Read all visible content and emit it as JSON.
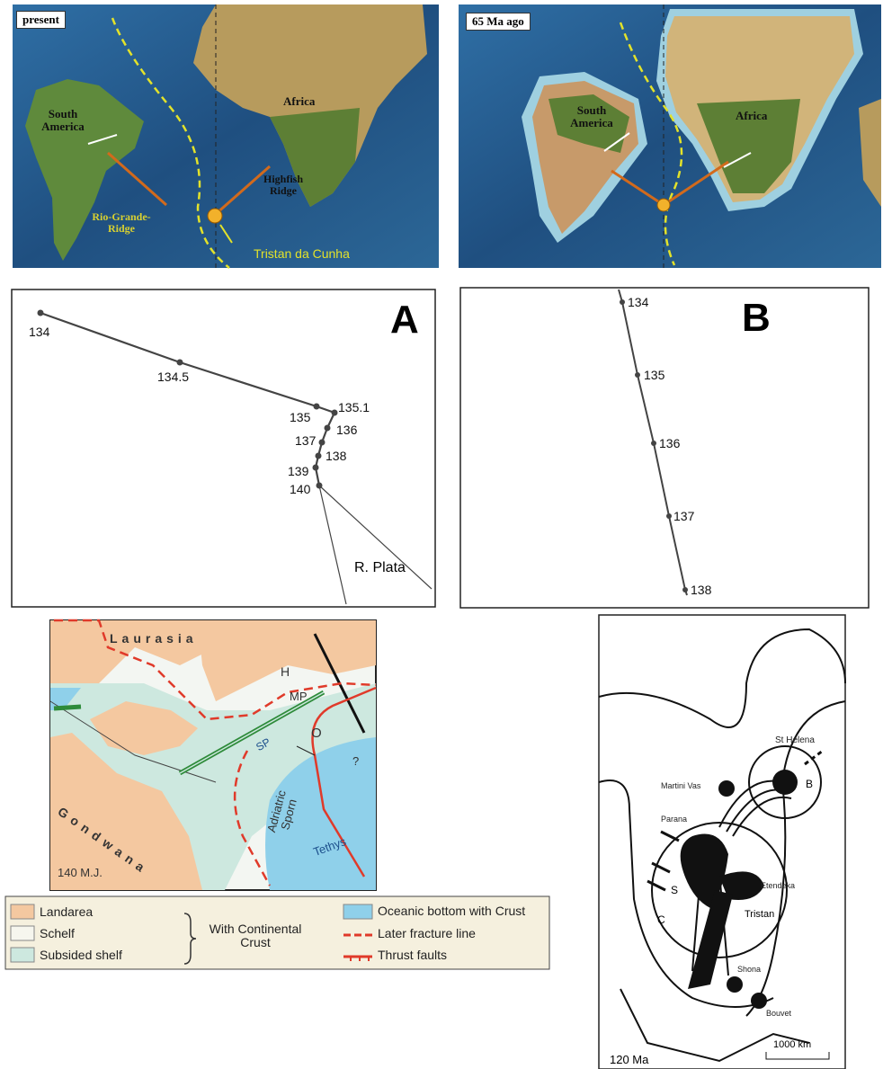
{
  "present_map": {
    "tag": "present",
    "south_america": "South America",
    "africa": "Africa",
    "highfish_ridge": "Highfish Ridge",
    "rio_grande_ridge": "Rio-Grande-Ridge",
    "tristan_da_cunha": "Tristan da Cunha"
  },
  "past_map": {
    "tag": "65 Ma ago",
    "south_america": "South America",
    "africa": "Africa"
  },
  "track_a": {
    "letter": "A",
    "points": [
      "134",
      "134.5",
      "135.1",
      "135",
      "136",
      "137",
      "138",
      "139",
      "140"
    ],
    "note": "R. Plata"
  },
  "track_b": {
    "letter": "B",
    "points": [
      "134",
      "135",
      "136",
      "137",
      "138"
    ]
  },
  "paleo_map": {
    "laurasia": "Laurasia",
    "gondwana": "Gondwana",
    "h": "H",
    "mp": "MP",
    "sp": "SP",
    "o": "O",
    "question": "?",
    "adriatric_sporn": "Adriatric Sporn",
    "tethys": "Tethys",
    "age": "140 M.J."
  },
  "legend": {
    "landarea": "Landarea",
    "schelf": "Schelf",
    "subsided_shelf": "Subsided shelf",
    "brace": "With Continental Crust",
    "oceanic_bottom": "Oceanic bottom with Crust",
    "later_fracture": "Later fracture line",
    "thrust_faults": "Thrust faults"
  },
  "hotspot_map": {
    "st_helena": "St Helena",
    "b": "B",
    "martini_vas": "Martini Vas",
    "parana": "Parana",
    "s": "S",
    "c": "C",
    "etendeka": "Etendeka",
    "tristan": "Tristan",
    "shona": "Shona",
    "bouvet": "Bouvet",
    "scale": "1000 km",
    "age": "120 Ma"
  }
}
